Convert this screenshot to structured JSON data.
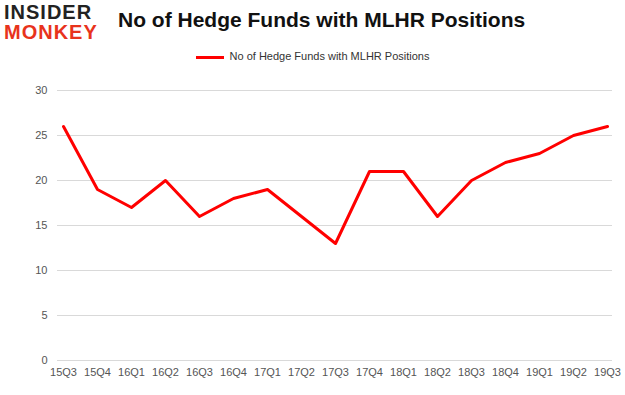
{
  "chart_data": {
    "type": "line",
    "title": "No of Hedge Funds with MLHR Positions",
    "logo": [
      "INSIDER",
      "MONKEY"
    ],
    "legend": "top",
    "categories": [
      "15Q3",
      "15Q4",
      "16Q1",
      "16Q2",
      "16Q3",
      "16Q4",
      "17Q1",
      "17Q2",
      "17Q3",
      "17Q4",
      "18Q1",
      "18Q2",
      "18Q3",
      "18Q4",
      "19Q1",
      "19Q2",
      "19Q3"
    ],
    "series": [
      {
        "name": "No of Hedge Funds with MLHR Positions",
        "color": "#ff0000",
        "values": [
          26,
          19,
          17,
          20,
          16,
          18,
          19,
          16,
          13,
          21,
          21,
          16,
          20,
          22,
          23,
          25,
          26
        ]
      }
    ],
    "ylim": [
      0,
      30
    ],
    "yticks": [
      0,
      5,
      10,
      15,
      20,
      25,
      30
    ],
    "grid": true
  }
}
